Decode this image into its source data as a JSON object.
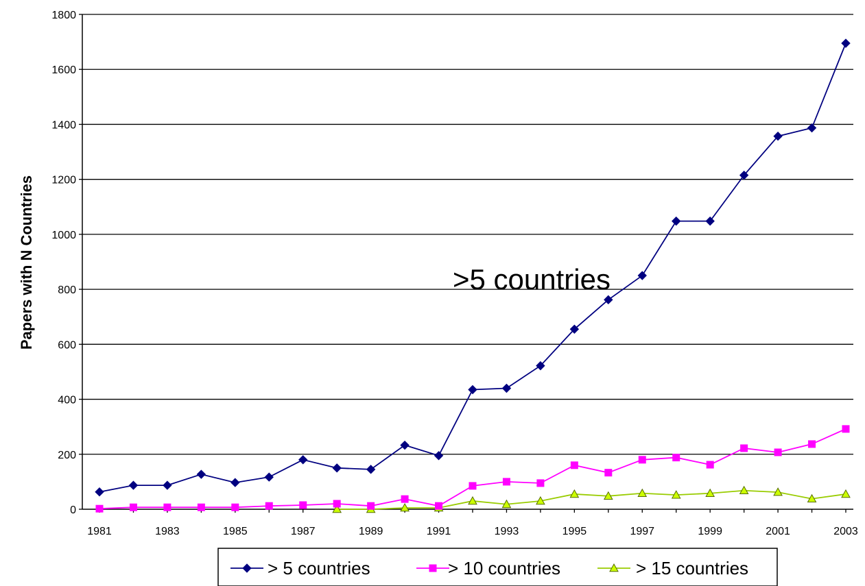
{
  "chart_data": {
    "type": "line",
    "title": "",
    "xlabel": "",
    "ylabel": "Papers with N Countries",
    "ylim": [
      0,
      1800
    ],
    "yticks": [
      0,
      200,
      400,
      600,
      800,
      1000,
      1200,
      1400,
      1600,
      1800
    ],
    "xticks": [
      "1981",
      "1983",
      "1985",
      "1987",
      "1989",
      "1991",
      "1993",
      "1995",
      "1997",
      "1999",
      "2001",
      "2003"
    ],
    "grid": "horizontal",
    "legend_position": "bottom",
    "annotation": ">5 countries",
    "x": [
      1981,
      1982,
      1983,
      1984,
      1985,
      1986,
      1987,
      1988,
      1989,
      1990,
      1991,
      1992,
      1993,
      1994,
      1995,
      1996,
      1997,
      1998,
      1999,
      2000,
      2001,
      2002,
      2003
    ],
    "series": [
      {
        "name": "> 5 countries",
        "color": "#000080",
        "marker": "diamond",
        "values": [
          63,
          87,
          87,
          127,
          97,
          117,
          180,
          150,
          145,
          233,
          195,
          435,
          440,
          522,
          655,
          762,
          850,
          1048,
          1048,
          1215,
          1357,
          1387,
          1695
        ]
      },
      {
        "name": "> 10 countries",
        "color": "#ff00ff",
        "marker": "square",
        "values": [
          2,
          7,
          7,
          7,
          7,
          12,
          15,
          20,
          12,
          37,
          12,
          85,
          100,
          95,
          160,
          133,
          180,
          188,
          162,
          222,
          207,
          237,
          292
        ]
      },
      {
        "name": "> 15 countries",
        "color": "#ccff00",
        "marker": "triangle",
        "values": [
          null,
          null,
          null,
          null,
          null,
          null,
          null,
          0,
          0,
          5,
          5,
          30,
          18,
          30,
          55,
          48,
          58,
          52,
          58,
          68,
          62,
          38,
          55
        ]
      }
    ]
  }
}
